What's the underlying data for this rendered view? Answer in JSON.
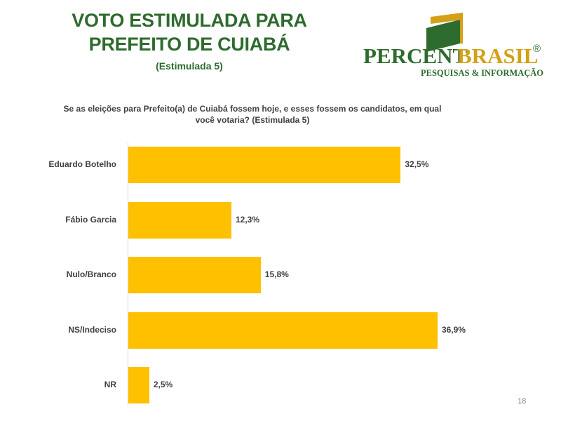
{
  "header": {
    "title_line1": "VOTO ESTIMULADA PARA",
    "title_line2": "PREFEITO DE CUIABÁ",
    "subtitle": "(Estimulada 5)"
  },
  "logo": {
    "name_part1": "PERCENT",
    "name_part2": "BRASIL",
    "registered": "®",
    "tagline": "PESQUISAS & INFORMAÇÃO",
    "green": "#2e6b2e",
    "gold": "#d4a017"
  },
  "question": {
    "line1": "Se as eleições para Prefeito(a) de Cuiabá fossem hoje, e esses fossem os candidatos, em qual",
    "line2": "você votaria? (Estimulada 5)"
  },
  "chart_data": {
    "type": "bar",
    "orientation": "horizontal",
    "categories": [
      "Eduardo Botelho",
      "Fábio Garcia",
      "Nulo/Branco",
      "NS/Indeciso",
      "NR"
    ],
    "values": [
      32.5,
      12.3,
      15.8,
      36.9,
      2.5
    ],
    "value_labels": [
      "32,5%",
      "12,3%",
      "15,8%",
      "36,9%",
      "2,5%"
    ],
    "unit": "%",
    "bar_color": "#ffc000",
    "grid": false,
    "legend": "none"
  },
  "page": {
    "number": "18"
  }
}
